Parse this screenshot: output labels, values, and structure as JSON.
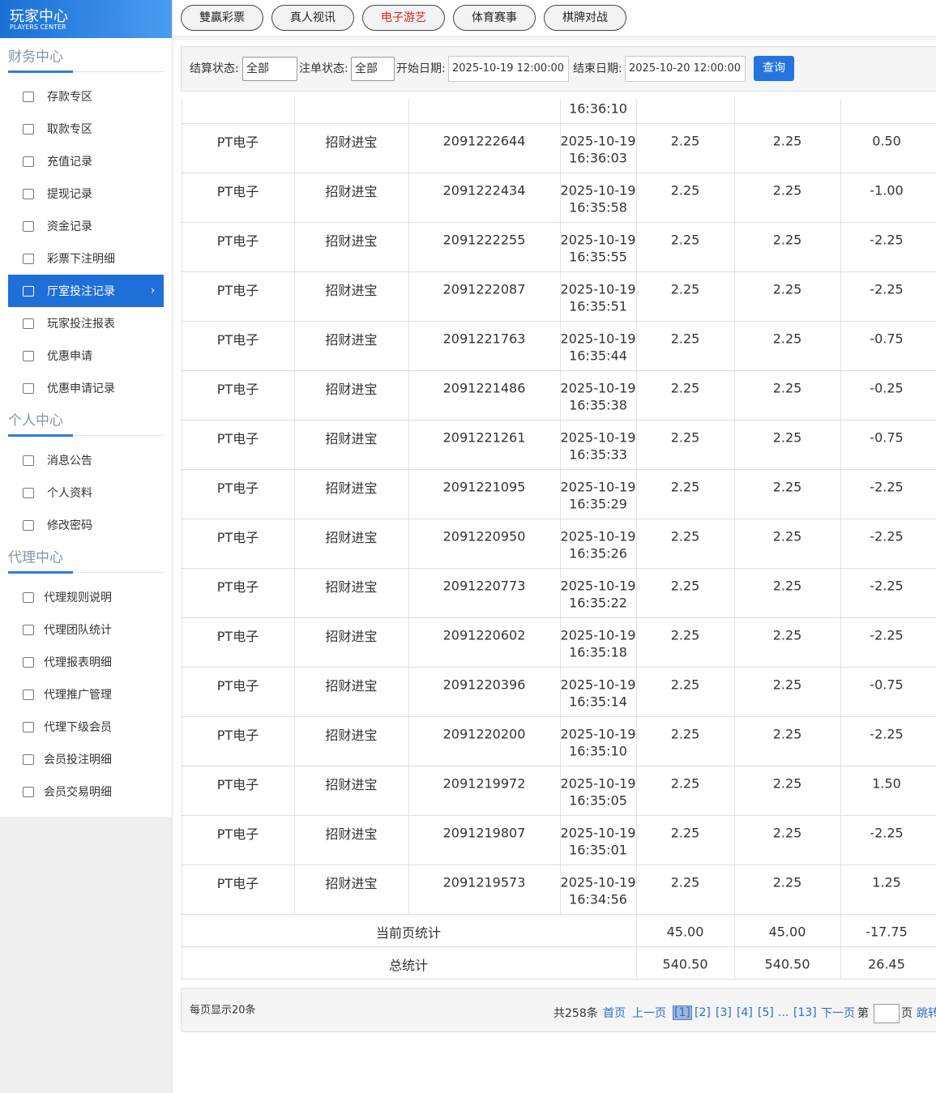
{
  "sidebar": {
    "logo_title": "玩家中心",
    "logo_subtitle": "PLAYERS CENTER",
    "sections": [
      {
        "title": "财务中心",
        "items": [
          {
            "label": "存款专区"
          },
          {
            "label": "取款专区"
          },
          {
            "label": "充值记录"
          },
          {
            "label": "提现记录"
          },
          {
            "label": "资金记录"
          },
          {
            "label": "彩票下注明细"
          },
          {
            "label": "厅室投注记录",
            "active": true
          },
          {
            "label": "玩家投注报表"
          },
          {
            "label": "优惠申请"
          },
          {
            "label": "优惠申请记录"
          }
        ]
      },
      {
        "title": "个人中心",
        "items": [
          {
            "label": "消息公告"
          },
          {
            "label": "个人资料"
          },
          {
            "label": "修改密码"
          }
        ]
      },
      {
        "title": "代理中心",
        "items": [
          {
            "label": "代理规则说明"
          },
          {
            "label": "代理团队统计"
          },
          {
            "label": "代理报表明细"
          },
          {
            "label": "代理推广管理"
          },
          {
            "label": "代理下级会员"
          },
          {
            "label": "会员投注明细"
          },
          {
            "label": "会员交易明细"
          }
        ]
      }
    ]
  },
  "tabs": [
    {
      "label": "雙贏彩票"
    },
    {
      "label": "真人视讯"
    },
    {
      "label": "电子游艺",
      "active": true
    },
    {
      "label": "体育赛事"
    },
    {
      "label": "棋牌对战"
    }
  ],
  "filter": {
    "settle_label": "结算状态:",
    "settle_value": "全部",
    "order_label": "注单状态:",
    "order_value": "全部",
    "start_label": "开始日期:",
    "start_value": "2025-10-19 12:00:00",
    "end_label": "结束日期:",
    "end_value": "2025-10-20 12:00:00",
    "button": "查询"
  },
  "table": {
    "partial_row_time": "16:36:10",
    "rows": [
      [
        "PT电子",
        "招财进宝",
        "2091222644",
        "2025-10-19",
        "16:36:03",
        "2.25",
        "2.25",
        "0.50"
      ],
      [
        "PT电子",
        "招财进宝",
        "2091222434",
        "2025-10-19",
        "16:35:58",
        "2.25",
        "2.25",
        "-1.00"
      ],
      [
        "PT电子",
        "招财进宝",
        "2091222255",
        "2025-10-19",
        "16:35:55",
        "2.25",
        "2.25",
        "-2.25"
      ],
      [
        "PT电子",
        "招财进宝",
        "2091222087",
        "2025-10-19",
        "16:35:51",
        "2.25",
        "2.25",
        "-2.25"
      ],
      [
        "PT电子",
        "招财进宝",
        "2091221763",
        "2025-10-19",
        "16:35:44",
        "2.25",
        "2.25",
        "-0.75"
      ],
      [
        "PT电子",
        "招财进宝",
        "2091221486",
        "2025-10-19",
        "16:35:38",
        "2.25",
        "2.25",
        "-0.25"
      ],
      [
        "PT电子",
        "招财进宝",
        "2091221261",
        "2025-10-19",
        "16:35:33",
        "2.25",
        "2.25",
        "-0.75"
      ],
      [
        "PT电子",
        "招财进宝",
        "2091221095",
        "2025-10-19",
        "16:35:29",
        "2.25",
        "2.25",
        "-2.25"
      ],
      [
        "PT电子",
        "招财进宝",
        "2091220950",
        "2025-10-19",
        "16:35:26",
        "2.25",
        "2.25",
        "-2.25"
      ],
      [
        "PT电子",
        "招财进宝",
        "2091220773",
        "2025-10-19",
        "16:35:22",
        "2.25",
        "2.25",
        "-2.25"
      ],
      [
        "PT电子",
        "招财进宝",
        "2091220602",
        "2025-10-19",
        "16:35:18",
        "2.25",
        "2.25",
        "-2.25"
      ],
      [
        "PT电子",
        "招财进宝",
        "2091220396",
        "2025-10-19",
        "16:35:14",
        "2.25",
        "2.25",
        "-0.75"
      ],
      [
        "PT电子",
        "招财进宝",
        "2091220200",
        "2025-10-19",
        "16:35:10",
        "2.25",
        "2.25",
        "-2.25"
      ],
      [
        "PT电子",
        "招财进宝",
        "2091219972",
        "2025-10-19",
        "16:35:05",
        "2.25",
        "2.25",
        "1.50"
      ],
      [
        "PT电子",
        "招财进宝",
        "2091219807",
        "2025-10-19",
        "16:35:01",
        "2.25",
        "2.25",
        "-2.25"
      ],
      [
        "PT电子",
        "招财进宝",
        "2091219573",
        "2025-10-19",
        "16:34:56",
        "2.25",
        "2.25",
        "1.25"
      ]
    ],
    "summary": [
      [
        "当前页统计",
        "45.00",
        "45.00",
        "-17.75"
      ],
      [
        "总统计",
        "540.50",
        "540.50",
        "26.45"
      ]
    ]
  },
  "footer": {
    "per_page": "每页显示20条",
    "pager": [
      {
        "label": "共258条"
      },
      {
        "label": "首页",
        "link": true
      },
      {
        "label": "上一页",
        "link": true
      },
      {
        "label": "[1]",
        "link": true,
        "current": true
      },
      {
        "label": "[2]",
        "link": true
      },
      {
        "label": "[3]",
        "link": true
      },
      {
        "label": "[4]",
        "link": true
      },
      {
        "label": "[5]",
        "link": true
      },
      {
        "label": "...",
        "link": true
      },
      {
        "label": "[13]",
        "link": true
      },
      {
        "label": "下一页",
        "link": true
      },
      {
        "label": "第"
      },
      {
        "label": "页"
      },
      {
        "label": "跳转",
        "link": true
      }
    ]
  }
}
